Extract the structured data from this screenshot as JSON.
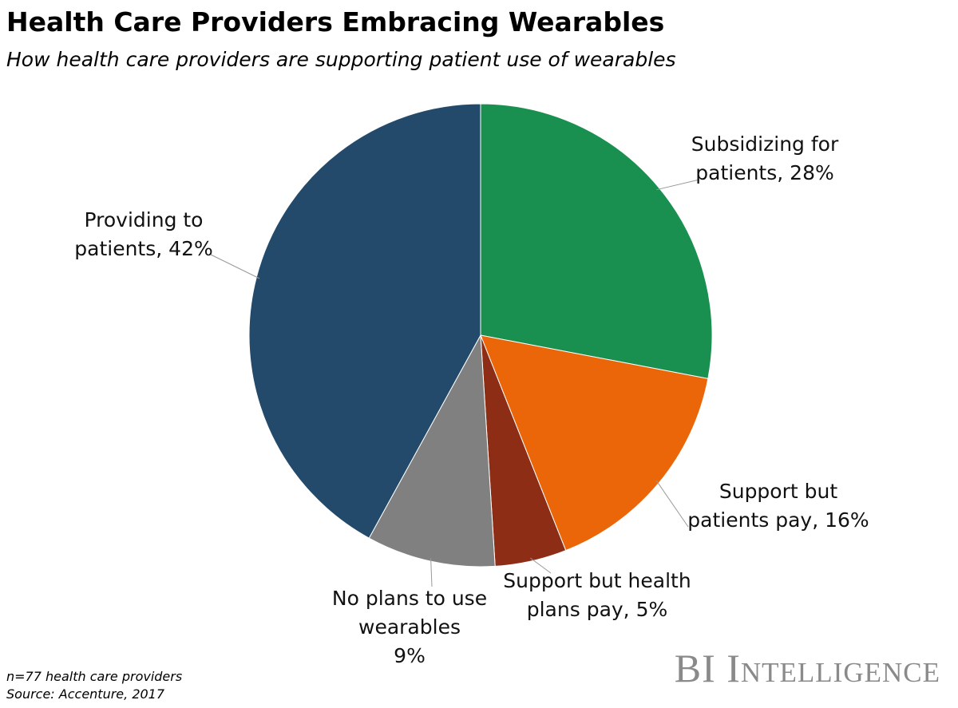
{
  "chart_data": {
    "type": "pie",
    "title": "Health Care Providers Embracing Wearables",
    "subtitle": "How health care providers are supporting patient use of wearables",
    "values": [
      28,
      16,
      5,
      9,
      42
    ],
    "value_labels": [
      "Subsidizing for\npatients, 28%",
      "Support but\npatients pay, 16%",
      "Support but health\nplans pay, 5%",
      "No plans to use\nwearables\n9%",
      "Providing to\npatients, 42%"
    ],
    "colors": [
      "#1a9050",
      "#eb6608",
      "#8e2d15",
      "#808080",
      "#234a6b"
    ],
    "note": "n=77 health care providers",
    "source": "Source: Accenture, 2017",
    "brand": "BI Intelligence"
  }
}
